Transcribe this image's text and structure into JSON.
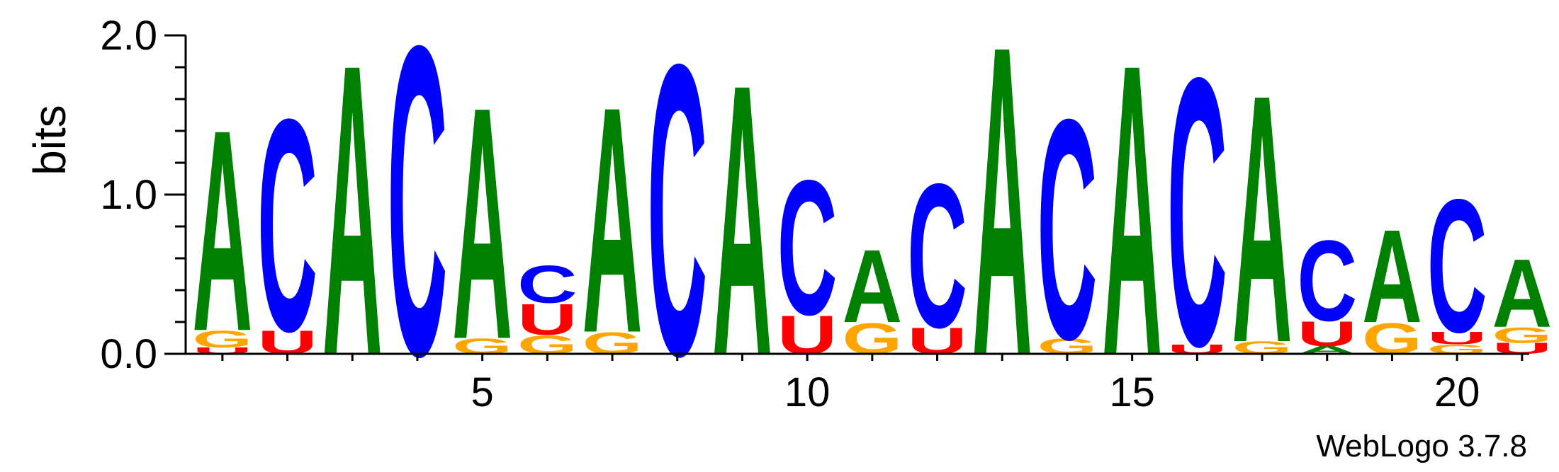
{
  "chart_data": {
    "type": "sequence-logo",
    "ylabel": "bits",
    "ylim": [
      0,
      2.0
    ],
    "y_ticks": [
      {
        "value": 0,
        "label": "0.0"
      },
      {
        "value": 1,
        "label": "1.0"
      },
      {
        "value": 2,
        "label": "2.0"
      }
    ],
    "x_ticks": [
      {
        "value": 5,
        "label": "5"
      },
      {
        "value": 10,
        "label": "10"
      },
      {
        "value": 15,
        "label": "15"
      },
      {
        "value": 20,
        "label": "20"
      }
    ],
    "colors": {
      "A": "#008000",
      "C": "#0000ff",
      "G": "#ffa500",
      "U": "#ff0000"
    },
    "positions": [
      {
        "pos": 1,
        "stack": [
          [
            "U",
            0.04
          ],
          [
            "G",
            0.11
          ],
          [
            "A",
            1.3
          ]
        ]
      },
      {
        "pos": 2,
        "stack": [
          [
            "U",
            0.15
          ],
          [
            "C",
            1.37
          ]
        ]
      },
      {
        "pos": 3,
        "stack": [
          [
            "A",
            1.88
          ]
        ]
      },
      {
        "pos": 4,
        "stack": [
          [
            "C",
            2.0
          ]
        ]
      },
      {
        "pos": 5,
        "stack": [
          [
            "G",
            0.1
          ],
          [
            "A",
            1.5
          ]
        ]
      },
      {
        "pos": 6,
        "stack": [
          [
            "G",
            0.12
          ],
          [
            "U",
            0.2
          ],
          [
            "C",
            0.24
          ]
        ]
      },
      {
        "pos": 7,
        "stack": [
          [
            "G",
            0.14
          ],
          [
            "A",
            1.46
          ]
        ]
      },
      {
        "pos": 8,
        "stack": [
          [
            "C",
            1.88
          ]
        ]
      },
      {
        "pos": 9,
        "stack": [
          [
            "A",
            1.75
          ]
        ]
      },
      {
        "pos": 10,
        "stack": [
          [
            "U",
            0.25
          ],
          [
            "C",
            0.87
          ]
        ]
      },
      {
        "pos": 11,
        "stack": [
          [
            "G",
            0.2
          ],
          [
            "A",
            0.47
          ]
        ]
      },
      {
        "pos": 12,
        "stack": [
          [
            "U",
            0.17
          ],
          [
            "C",
            0.93
          ]
        ]
      },
      {
        "pos": 13,
        "stack": [
          [
            "A",
            2.0
          ]
        ]
      },
      {
        "pos": 14,
        "stack": [
          [
            "G",
            0.1
          ],
          [
            "C",
            1.42
          ]
        ]
      },
      {
        "pos": 15,
        "stack": [
          [
            "A",
            1.88
          ]
        ]
      },
      {
        "pos": 16,
        "stack": [
          [
            "U",
            0.06
          ],
          [
            "C",
            1.73
          ]
        ]
      },
      {
        "pos": 17,
        "stack": [
          [
            "G",
            0.08
          ],
          [
            "A",
            1.6
          ]
        ]
      },
      {
        "pos": 18,
        "stack": [
          [
            "A",
            0.05
          ],
          [
            "U",
            0.16
          ],
          [
            "C",
            0.52
          ]
        ]
      },
      {
        "pos": 19,
        "stack": [
          [
            "G",
            0.2
          ],
          [
            "A",
            0.6
          ]
        ]
      },
      {
        "pos": 20,
        "stack": [
          [
            "G",
            0.06
          ],
          [
            "U",
            0.08
          ],
          [
            "C",
            0.86
          ]
        ]
      },
      {
        "pos": 21,
        "stack": [
          [
            "U",
            0.07
          ],
          [
            "G",
            0.1
          ],
          [
            "A",
            0.44
          ]
        ]
      }
    ]
  },
  "credit": "WebLogo 3.7.8"
}
